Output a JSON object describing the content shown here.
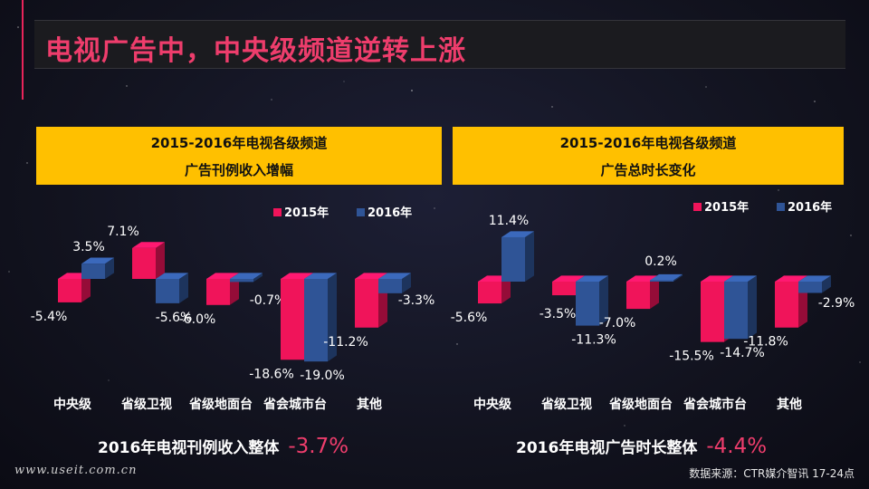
{
  "page_title": "电视广告中，中央级频道逆转上涨",
  "colors": {
    "y2015": "#f0145a",
    "y2016": "#2f5496",
    "accent": "#ee3d6c",
    "header_bg": "#ffc000"
  },
  "chart_data": [
    {
      "type": "bar",
      "title_line1": "2015-2016年电视各级频道",
      "title_line2": "广告刊例收入增幅",
      "categories": [
        "中央级",
        "省级卫视",
        "省级地面台",
        "省会城市台",
        "其他"
      ],
      "series": [
        {
          "name": "2015年",
          "values": [
            -5.4,
            7.1,
            -6.0,
            -18.6,
            -11.2
          ]
        },
        {
          "name": "2016年",
          "values": [
            3.5,
            -5.6,
            -0.7,
            -19.0,
            -3.3
          ]
        }
      ],
      "legend": "top-right",
      "grid": false
    },
    {
      "type": "bar",
      "title_line1": "2015-2016年电视各级频道",
      "title_line2": "广告总时长变化",
      "categories": [
        "中央级",
        "省级卫视",
        "省级地面台",
        "省会城市台",
        "其他"
      ],
      "series": [
        {
          "name": "2015年",
          "values": [
            -5.6,
            -3.5,
            -7.0,
            -15.5,
            -11.8
          ]
        },
        {
          "name": "2016年",
          "values": [
            11.4,
            -11.3,
            0.2,
            -14.7,
            -2.9
          ]
        }
      ],
      "legend": "top-right",
      "grid": false
    }
  ],
  "summary_left": {
    "label": "2016年电视刊例收入整体",
    "value": "-3.7%"
  },
  "summary_right": {
    "label": "2016年电视广告时长整体",
    "value": "-4.4%"
  },
  "watermark": "www.useit.com.cn",
  "source": "数据来源：CTR媒介智讯  17-24点"
}
